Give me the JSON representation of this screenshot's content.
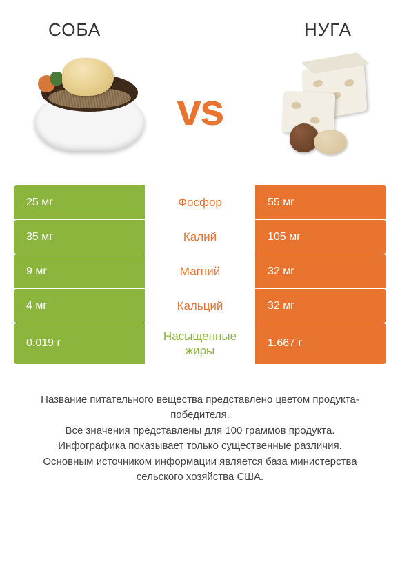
{
  "colors": {
    "green": "#8bb53c",
    "orange": "#e8742f",
    "text": "#333333",
    "label_green": "#8bb53c",
    "label_orange": "#e8742f"
  },
  "left_title": "СОБА",
  "right_title": "НУГА",
  "vs": "vs",
  "rows": [
    {
      "label": "Фосфор",
      "left": "25 мг",
      "right": "55 мг",
      "winner": "right"
    },
    {
      "label": "Калий",
      "left": "35 мг",
      "right": "105 мг",
      "winner": "right"
    },
    {
      "label": "Магний",
      "left": "9 мг",
      "right": "32 мг",
      "winner": "right"
    },
    {
      "label": "Кальций",
      "left": "4 мг",
      "right": "32 мг",
      "winner": "right"
    },
    {
      "label": "Насыщенные жиры",
      "left": "0.019 г",
      "right": "1.667 г",
      "winner": "left"
    }
  ],
  "footer_lines": [
    "Название питательного вещества представлено цветом продукта-победителя.",
    "Все значения представлены для 100 граммов продукта.",
    "Инфографика показывает только существенные различия.",
    "Основным источником информации является база министерства сельского хозяйства США."
  ]
}
